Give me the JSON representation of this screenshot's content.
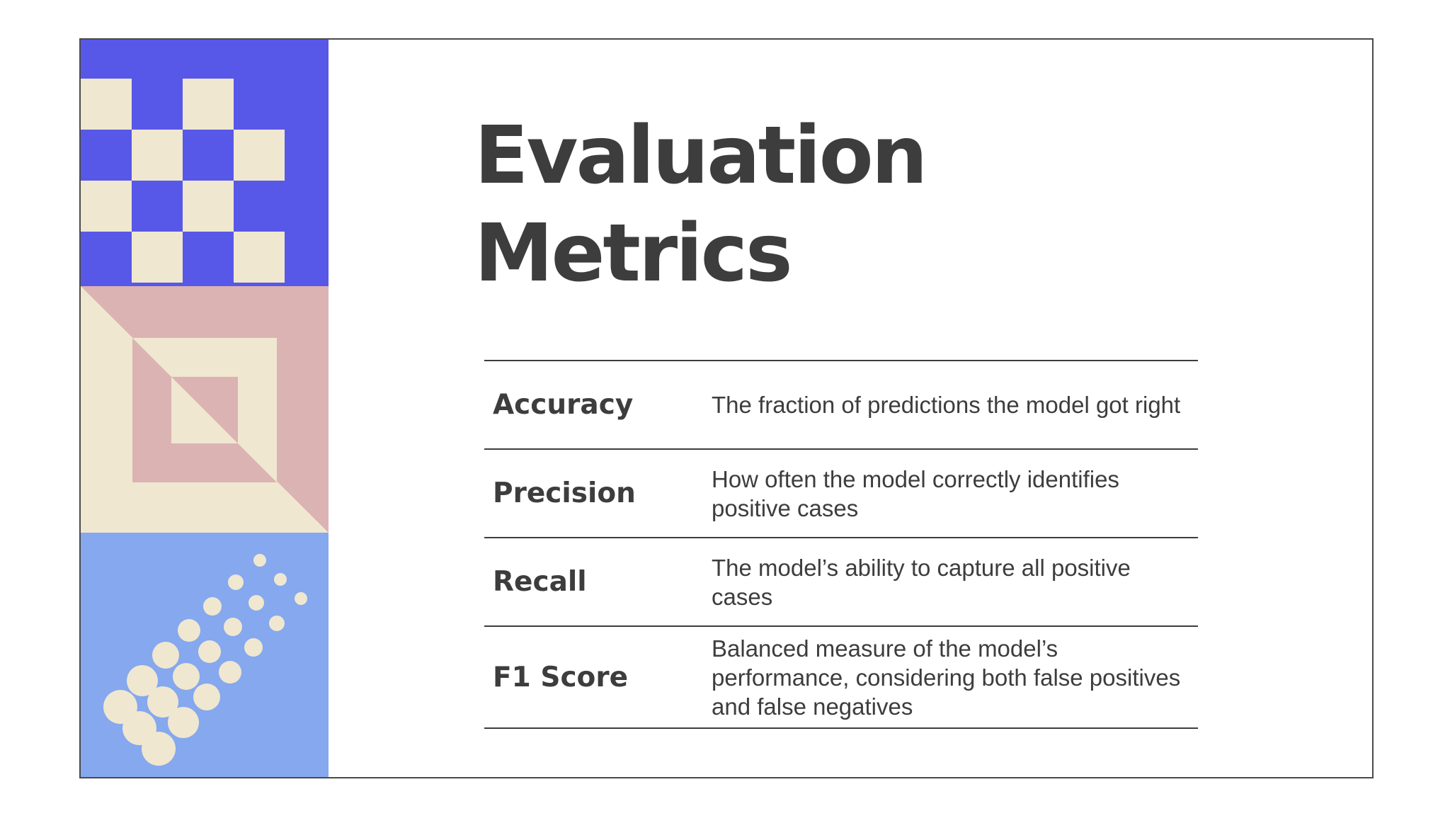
{
  "slide": {
    "title_lines": [
      "Evaluation",
      "Metrics"
    ]
  },
  "metrics": [
    {
      "term": "Accuracy",
      "definition": "The fraction of predictions the model got right"
    },
    {
      "term": "Precision",
      "definition": "How often the model correctly identifies positive cases"
    },
    {
      "term": "Recall",
      "definition": "The model’s ability to capture all positive cases"
    },
    {
      "term": "F1 Score",
      "definition": "Balanced measure of the model’s performance, considering both false positives and false negatives"
    }
  ],
  "colors": {
    "ink": "#3d3d3d",
    "blue": "#5858e8",
    "cream": "#f0e7d0",
    "pink": "#dbb3b3",
    "light_blue": "#85a8ee"
  }
}
